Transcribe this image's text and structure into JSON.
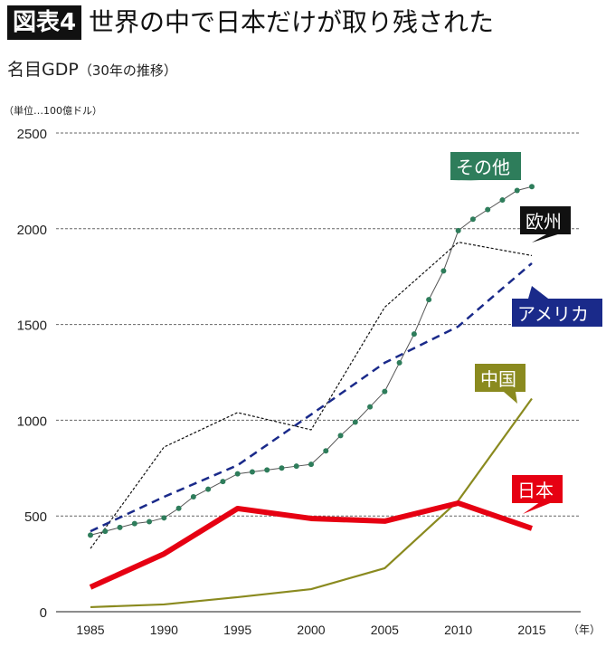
{
  "header": {
    "badge": "図表4",
    "title": "世界の中で日本だけが取り残された",
    "subtitle": "名目GDP",
    "subtitle_note": "（30年の推移）",
    "unit": "（単位…100億ドル）"
  },
  "chart_data": {
    "type": "line",
    "title": "世界の中で日本だけが取り残された",
    "xlabel": "（年）",
    "ylabel": "（単位…100億ドル）",
    "xlim": [
      1985,
      2015
    ],
    "ylim": [
      0,
      2500
    ],
    "grid": true,
    "x_ticks": [
      "1985",
      "1990",
      "1995",
      "2000",
      "2005",
      "2010",
      "2015"
    ],
    "y_ticks": [
      "0",
      "500",
      "1000",
      "1500",
      "2000",
      "2500"
    ],
    "series": [
      {
        "name": "その他",
        "color": "#2e7d5b",
        "style": "dotted-markers",
        "x": [
          1985,
          1986,
          1987,
          1988,
          1989,
          1990,
          1991,
          1992,
          1993,
          1994,
          1995,
          1996,
          1997,
          1998,
          1999,
          2000,
          2001,
          2002,
          2003,
          2004,
          2005,
          2006,
          2007,
          2008,
          2009,
          2010,
          2011,
          2012,
          2013,
          2014,
          2015
        ],
        "values": [
          400,
          420,
          440,
          460,
          470,
          490,
          540,
          600,
          640,
          680,
          720,
          730,
          740,
          750,
          760,
          770,
          840,
          920,
          990,
          1070,
          1150,
          1300,
          1450,
          1630,
          1780,
          1990,
          2050,
          2100,
          2150,
          2200,
          2220
        ]
      },
      {
        "name": "欧州",
        "color": "#111111",
        "style": "fine-dash",
        "x": [
          1985,
          1990,
          1995,
          2000,
          2005,
          2010,
          2015
        ],
        "values": [
          330,
          860,
          1040,
          950,
          1590,
          1930,
          1860
        ]
      },
      {
        "name": "アメリカ",
        "color": "#1a2a8a",
        "style": "dash",
        "x": [
          1985,
          1990,
          1995,
          2000,
          2005,
          2010,
          2015
        ],
        "values": [
          420,
          600,
          765,
          1030,
          1300,
          1490,
          1820
        ]
      },
      {
        "name": "中国",
        "color": "#8a8a1f",
        "style": "solid",
        "x": [
          1985,
          1990,
          1995,
          2000,
          2005,
          2010,
          2015
        ],
        "values": [
          24,
          38,
          76,
          118,
          227,
          580,
          1113
        ]
      },
      {
        "name": "日本",
        "color": "#e60012",
        "style": "thick",
        "x": [
          1985,
          1990,
          1995,
          2000,
          2005,
          2010,
          2015
        ],
        "values": [
          128,
          302,
          539,
          487,
          473,
          567,
          435
        ]
      }
    ]
  }
}
